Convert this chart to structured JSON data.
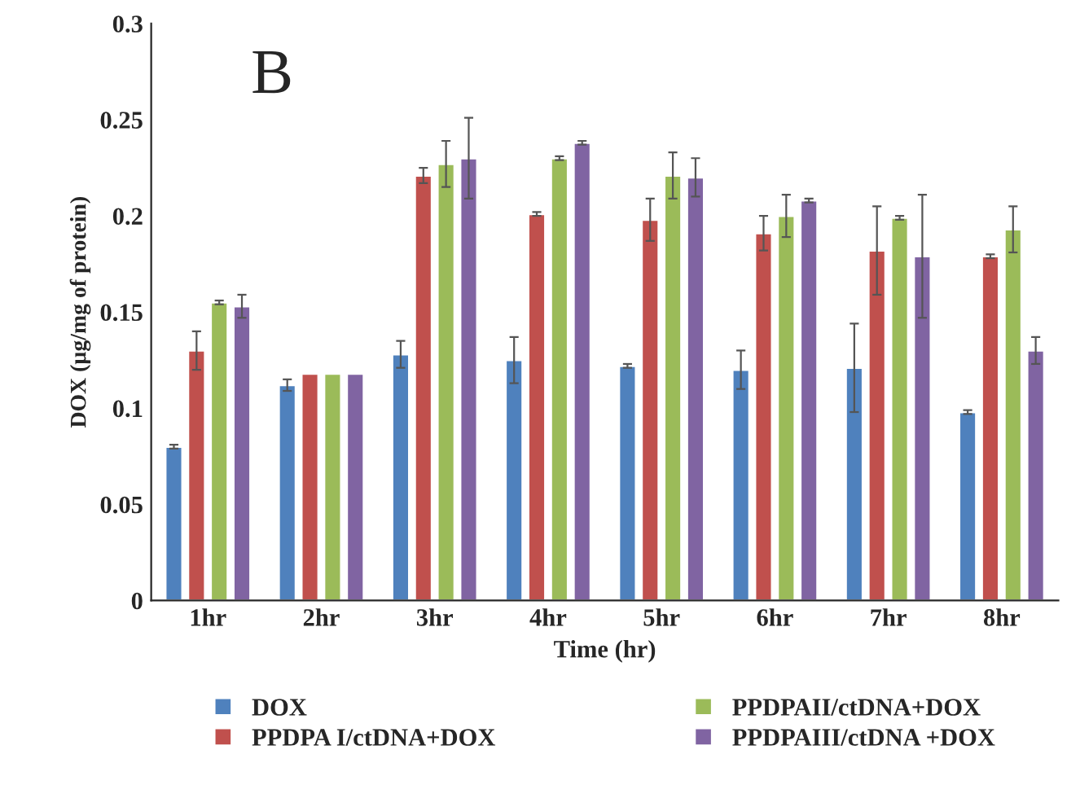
{
  "chart_data": {
    "type": "bar",
    "xlabel": "Time (hr)",
    "ylabel": "DOX (µg/mg of protein)",
    "categories": [
      "1hr",
      "2hr",
      "3hr",
      "4hr",
      "5hr",
      "6hr",
      "7hr",
      "8hr"
    ],
    "series": [
      {
        "name": "DOX",
        "color": "#4f81bd",
        "values": [
          0.08,
          0.112,
          0.128,
          0.125,
          0.122,
          0.12,
          0.121,
          0.098
        ],
        "errors": [
          0.001,
          0.003,
          0.007,
          0.012,
          0.001,
          0.01,
          0.023,
          0.001
        ]
      },
      {
        "name": "PPDPA I/ctDNA+DOX",
        "color": "#c0504d",
        "values": [
          0.13,
          0.118,
          0.221,
          0.201,
          0.198,
          0.191,
          0.182,
          0.179
        ],
        "errors": [
          0.01,
          null,
          0.004,
          0.001,
          0.011,
          0.009,
          0.023,
          0.001
        ]
      },
      {
        "name": "PPDPAII/ctDNA+DOX",
        "color": "#9bbb59",
        "values": [
          0.155,
          0.118,
          0.227,
          0.23,
          0.221,
          0.2,
          0.199,
          0.193
        ],
        "errors": [
          0.001,
          null,
          0.012,
          0.001,
          0.012,
          0.011,
          0.001,
          0.012
        ]
      },
      {
        "name": "PPDPAIII/ctDNA +DOX",
        "color": "#8064a2",
        "values": [
          0.153,
          0.118,
          0.23,
          0.238,
          0.22,
          0.208,
          0.179,
          0.13
        ],
        "errors": [
          0.006,
          null,
          0.021,
          0.001,
          0.01,
          0.001,
          0.032,
          0.007
        ]
      }
    ],
    "ylim": [
      0,
      0.3
    ],
    "yticks": [
      {
        "value": 0,
        "label": "0"
      },
      {
        "value": 0.05,
        "label": "0.05"
      },
      {
        "value": 0.1,
        "label": "0.1"
      },
      {
        "value": 0.15,
        "label": "0.15"
      },
      {
        "value": 0.2,
        "label": "0.2"
      },
      {
        "value": 0.25,
        "label": "0.25"
      },
      {
        "value": 0.3,
        "label": "0.3"
      }
    ],
    "grid": false,
    "legend": "bottom",
    "annotations": [
      "B"
    ]
  }
}
